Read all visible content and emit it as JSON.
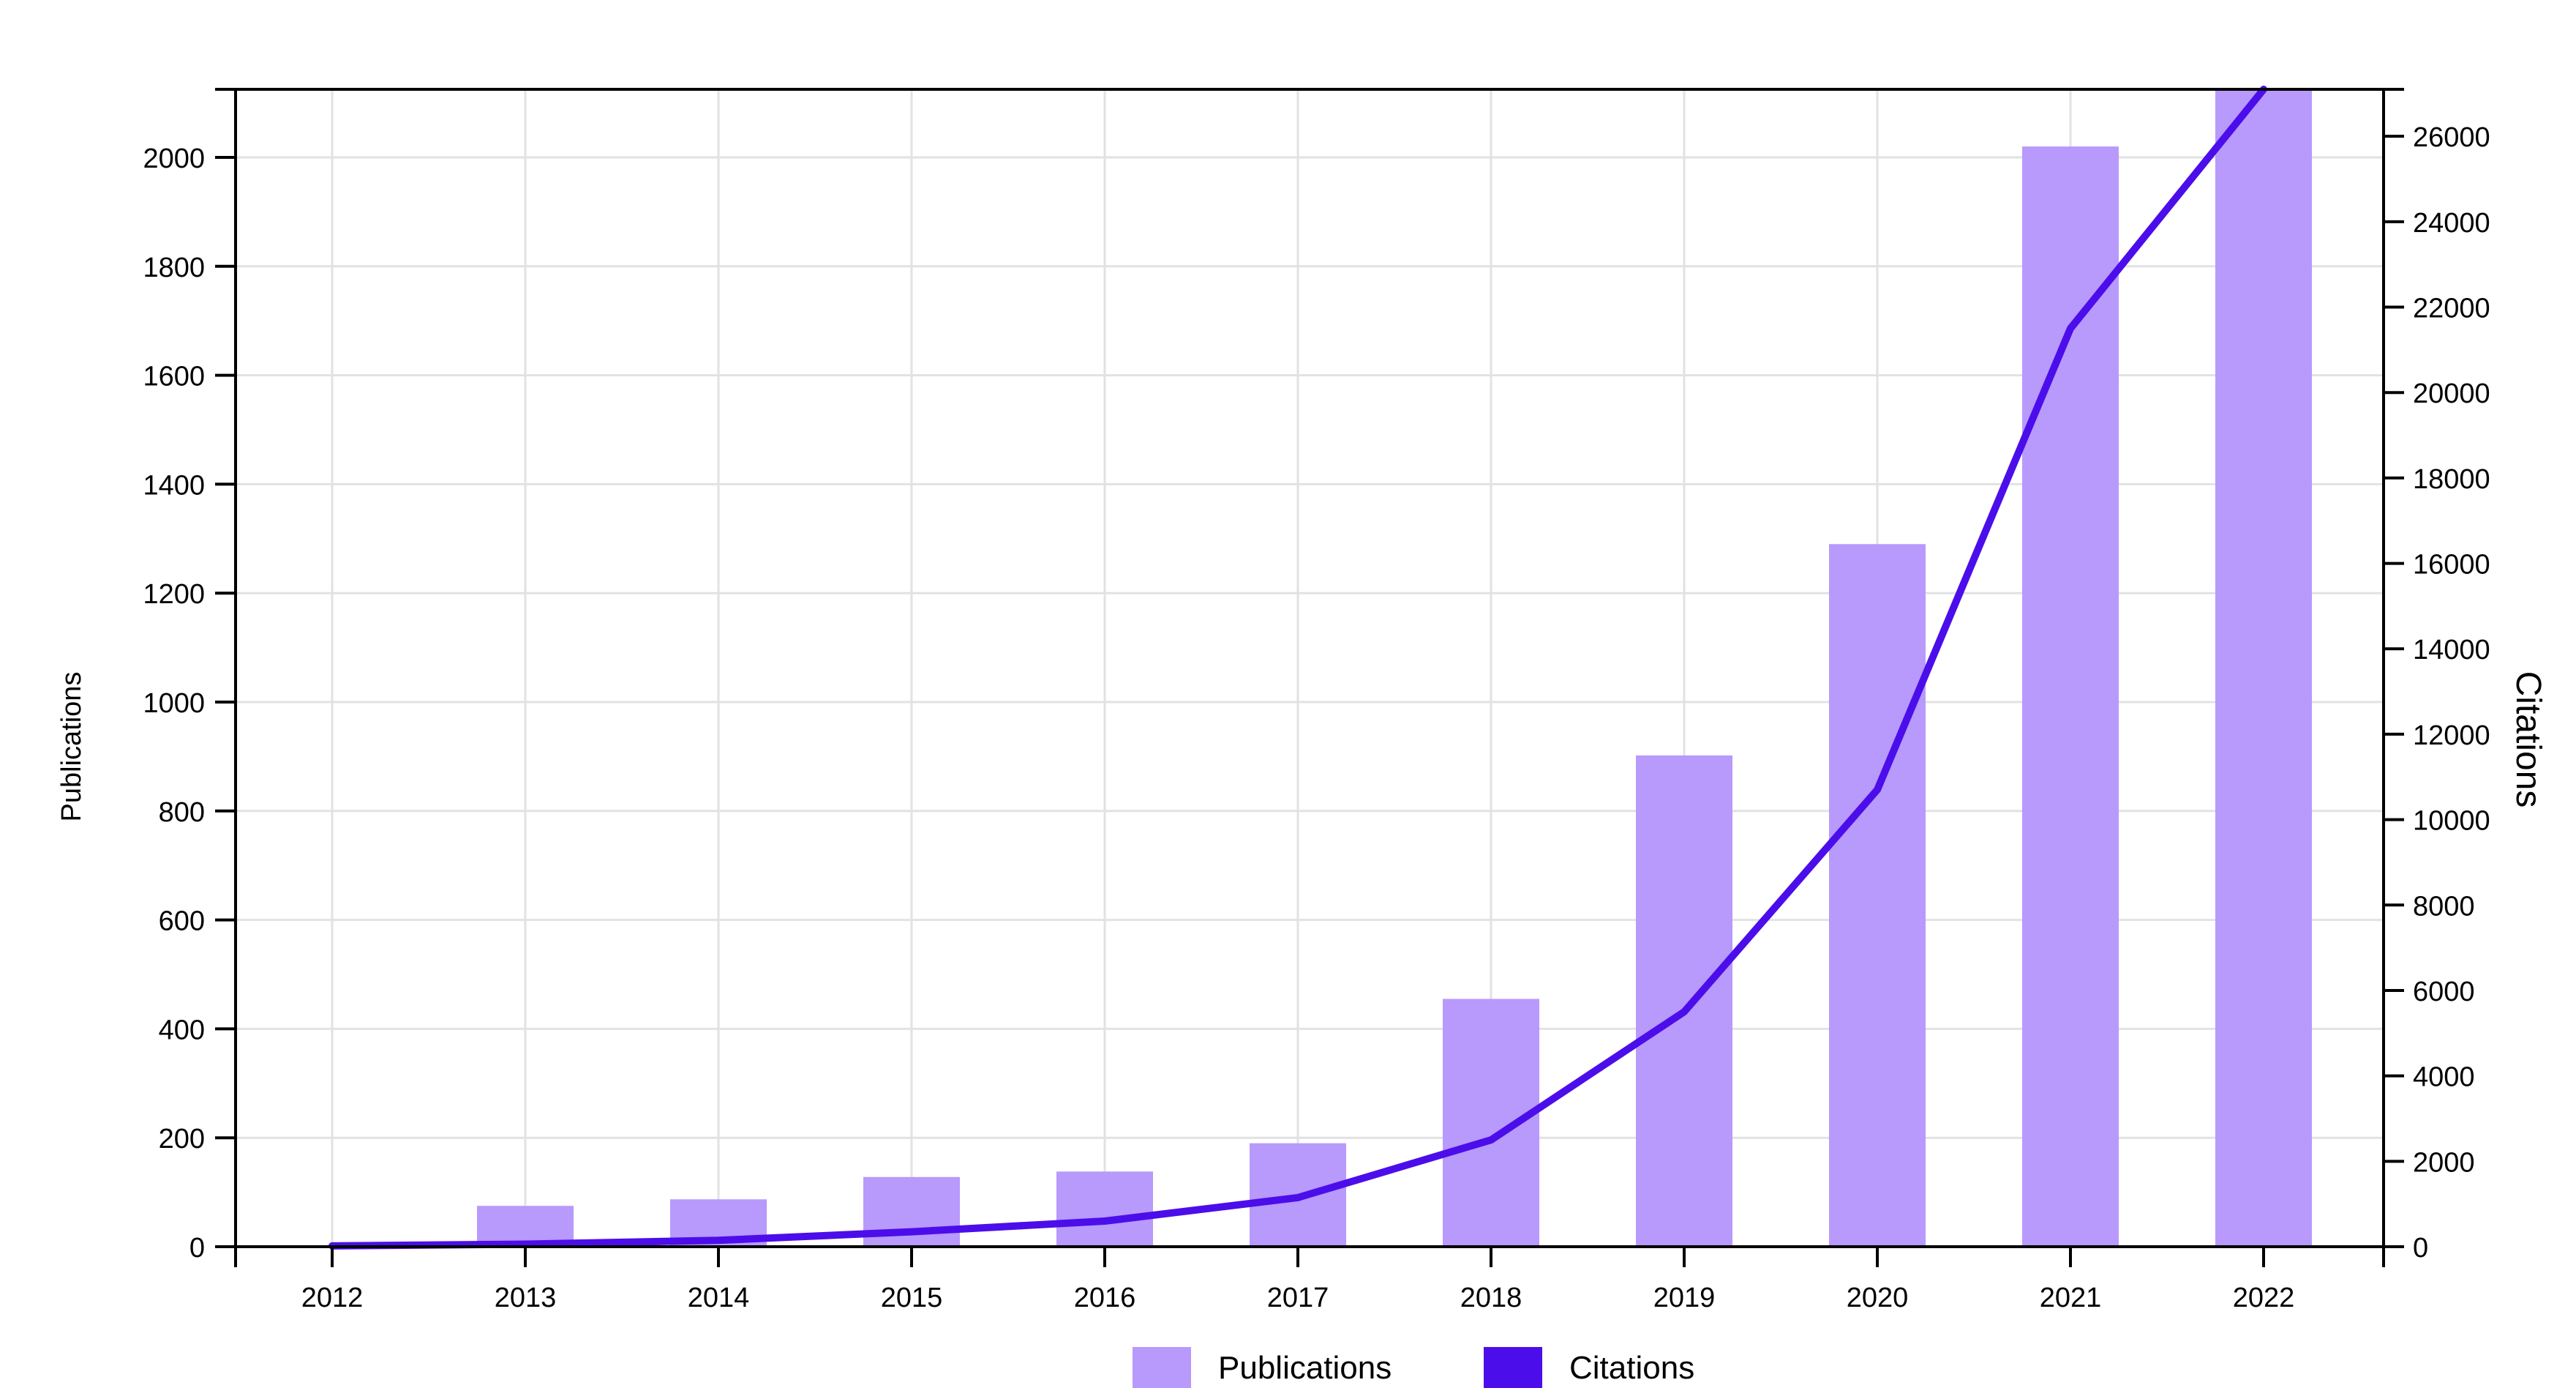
{
  "chart_data": {
    "type": "bar",
    "categories": [
      "2012",
      "2013",
      "2014",
      "2015",
      "2016",
      "2017",
      "2018",
      "2019",
      "2020",
      "2021",
      "2022"
    ],
    "series": [
      {
        "name": "Publications",
        "type": "bar",
        "axis": "left",
        "color": "#b899fc",
        "values": [
          0,
          75,
          87,
          128,
          138,
          190,
          455,
          902,
          1290,
          2020,
          2125
        ]
      },
      {
        "name": "Citations",
        "type": "line",
        "axis": "right",
        "color": "#4b0eea",
        "values": [
          20,
          60,
          150,
          350,
          600,
          1150,
          2500,
          5500,
          10700,
          21500,
          27100
        ]
      }
    ],
    "ylabel": "Publications",
    "y2label": "Citations",
    "ylim": [
      0,
      2125
    ],
    "y2lim": [
      0,
      27100
    ],
    "yticks": [
      0,
      200,
      400,
      600,
      800,
      1000,
      1200,
      1400,
      1600,
      1800,
      2000
    ],
    "y2ticks": [
      0,
      2000,
      4000,
      6000,
      8000,
      10000,
      12000,
      14000,
      16000,
      18000,
      20000,
      22000,
      24000,
      26000
    ],
    "grid": true,
    "legend": "bottom-center",
    "legend_entries": [
      "Publications",
      "Citations"
    ]
  }
}
